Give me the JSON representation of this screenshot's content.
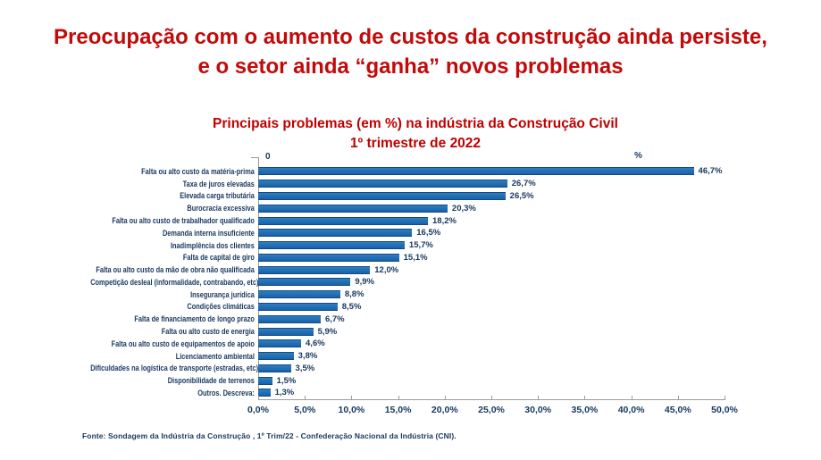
{
  "slide": {
    "title": "Preocupação com o aumento de custos da construção ainda persiste, e o setor ainda “ganha” novos problemas",
    "footer": "Fonte: Sondagem da Indústria da Construção , 1º Trim/22 - Confederação Nacional da Indústria (CNI)."
  },
  "chart_data": {
    "type": "bar",
    "orientation": "horizontal",
    "title": "Principais problemas (em %) na indústria da Construção Civil",
    "subtitle": "1º trimestre de 2022",
    "origin_label": "0",
    "unit_label": "%",
    "grid": false,
    "legend": false,
    "xlim": [
      0,
      50
    ],
    "categories": [
      "Falta ou alto custo da matéria-prima",
      "Taxa de juros elevadas",
      "Elevada carga tributária",
      "Burocracia excessiva",
      "Falta ou alto custo de trabalhador qualificado",
      "Demanda interna insuficiente",
      "Inadimplência dos clientes",
      "Falta de capital de giro",
      "Falta ou alto custo da mão de obra não qualificada",
      "Competição desleal (informalidade, contrabando, etc)",
      "Insegurança jurídica",
      "Condições climáticas",
      "Falta de financiamento de longo prazo",
      "Falta ou alto custo de energia",
      "Falta ou alto custo de equipamentos de apoio",
      "Licenciamento ambiental",
      "Dificuldades na logística de transporte (estradas, etc)",
      "Disponibilidade de terrenos",
      "Outros. Descreva:"
    ],
    "values": [
      46.7,
      26.7,
      26.5,
      20.3,
      18.2,
      16.5,
      15.7,
      15.1,
      12.0,
      9.9,
      8.8,
      8.5,
      6.7,
      5.9,
      4.6,
      3.8,
      3.5,
      1.5,
      1.3
    ],
    "value_labels": [
      "46,7%",
      "26,7%",
      "26,5%",
      "20,3%",
      "18,2%",
      "16,5%",
      "15,7%",
      "15,1%",
      "12,0%",
      "9,9%",
      "8,8%",
      "8,5%",
      "6,7%",
      "5,9%",
      "4,6%",
      "3,8%",
      "3,5%",
      "1,5%",
      "1,3%"
    ],
    "x_ticks": [
      "0,0%",
      "5,0%",
      "10,0%",
      "15,0%",
      "20,0%",
      "25,0%",
      "30,0%",
      "35,0%",
      "40,0%",
      "45,0%",
      "50,0%"
    ],
    "colors": {
      "bar": "#2272B8",
      "bar_border": "#174A7D",
      "text_navy": "#17375E",
      "title_red": "#C00000",
      "axis_gray": "#9C9C9C"
    }
  }
}
